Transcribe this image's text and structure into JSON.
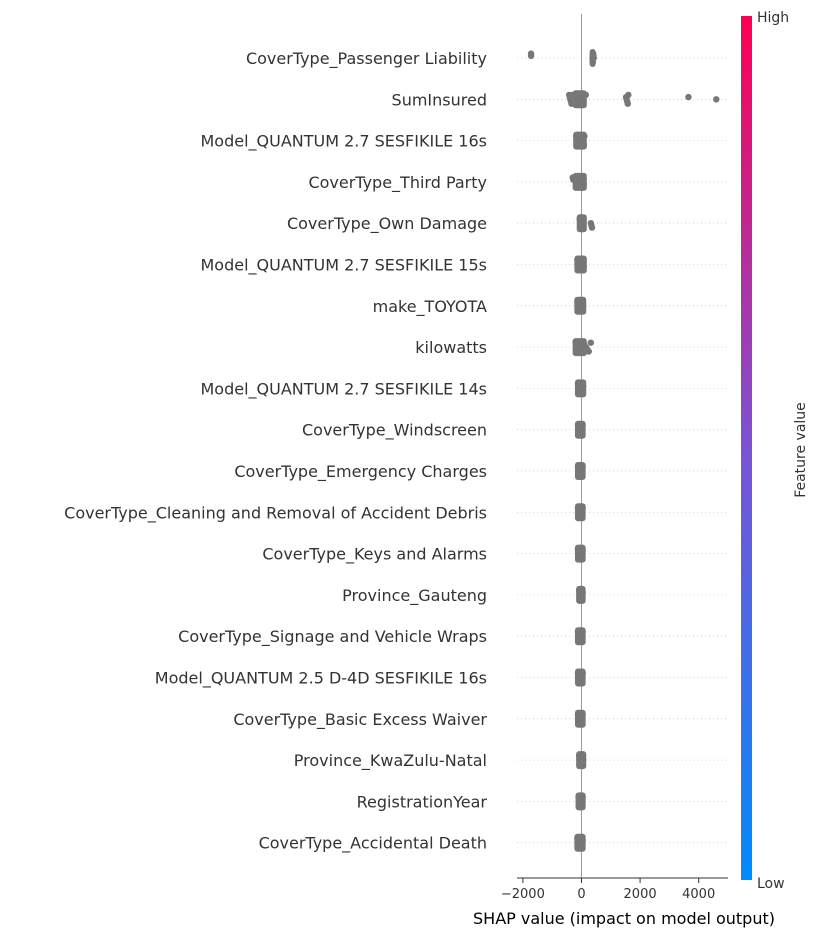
{
  "chart_data": {
    "type": "scatter",
    "subtype": "shap-beeswarm-summary",
    "xlabel": "SHAP value (impact on model output)",
    "xlim": [
      -2200,
      5000
    ],
    "x_ticks": [
      -2000,
      0,
      2000,
      4000
    ],
    "x_tick_labels": [
      "−2000",
      "0",
      "2000",
      "4000"
    ],
    "point_color": "#777777",
    "colorbar": {
      "title": "Feature value",
      "high_label": "High",
      "low_label": "Low",
      "high_color": "#ff0052",
      "mid_color": "#7c52d6",
      "low_color": "#008bfb"
    },
    "features": [
      {
        "name": "CoverType_Passenger Liability",
        "points": [
          -1720,
          -1720,
          380,
          380,
          390,
          400,
          410,
          420
        ]
      },
      {
        "name": "SumInsured",
        "points": [
          -420,
          -400,
          -380,
          -360,
          -340,
          -320,
          -300,
          -280,
          -250,
          -200,
          150,
          1520,
          1540,
          1560,
          1580,
          1600,
          3650,
          4600
        ]
      },
      {
        "name": "Model_QUANTUM 2.7 SESFIKILE 16s",
        "points": [
          -180,
          -150,
          -100,
          -60,
          -20,
          0,
          20,
          40,
          60,
          80,
          100
        ]
      },
      {
        "name": "CoverType_Third Party",
        "points": [
          -300,
          -280,
          -50,
          -20,
          0,
          20,
          40,
          60,
          80
        ]
      },
      {
        "name": "CoverType_Own Damage",
        "points": [
          -60,
          -40,
          -20,
          0,
          20,
          40,
          60,
          320,
          340,
          360
        ]
      },
      {
        "name": "Model_QUANTUM 2.7 SESFIKILE 15s",
        "points": [
          -140,
          -100,
          -60,
          -20,
          0,
          20,
          40,
          60,
          80
        ]
      },
      {
        "name": "make_TOYOTA",
        "points": [
          -140,
          -100,
          -60,
          -20,
          0,
          20,
          40,
          60
        ]
      },
      {
        "name": "kilowatts",
        "points": [
          -200,
          -150,
          -100,
          -50,
          0,
          50,
          100,
          150,
          200,
          250,
          320
        ]
      },
      {
        "name": "Model_QUANTUM 2.7 SESFIKILE 14s",
        "points": [
          -120,
          -80,
          -40,
          0,
          20,
          40,
          60
        ]
      },
      {
        "name": "CoverType_Windscreen",
        "points": [
          -120,
          -80,
          -40,
          0,
          20,
          40
        ]
      },
      {
        "name": "CoverType_Emergency Charges",
        "points": [
          -120,
          -80,
          -40,
          0,
          20,
          40
        ]
      },
      {
        "name": "CoverType_Cleaning and Removal of Accident Debris",
        "points": [
          -120,
          -80,
          -40,
          0,
          20,
          40
        ]
      },
      {
        "name": "CoverType_Keys and Alarms",
        "points": [
          -120,
          -80,
          -40,
          0,
          20,
          40
        ]
      },
      {
        "name": "Province_Gauteng",
        "points": [
          -80,
          -60,
          -40,
          -20,
          0,
          20,
          40
        ]
      },
      {
        "name": "CoverType_Signage and Vehicle Wraps",
        "points": [
          -120,
          -80,
          -40,
          0,
          20,
          40
        ]
      },
      {
        "name": "Model_QUANTUM 2.5 D-4D SESFIKILE 16s",
        "points": [
          -120,
          -80,
          -40,
          0,
          20,
          40
        ]
      },
      {
        "name": "CoverType_Basic Excess Waiver",
        "points": [
          -120,
          -80,
          -40,
          0,
          20,
          40
        ]
      },
      {
        "name": "Province_KwaZulu-Natal",
        "points": [
          -80,
          -60,
          -40,
          -20,
          0,
          20,
          40,
          60
        ]
      },
      {
        "name": "RegistrationYear",
        "points": [
          -100,
          -60,
          -20,
          0,
          20,
          40
        ]
      },
      {
        "name": "CoverType_Accidental Death",
        "points": [
          -140,
          -100,
          -60,
          -20,
          0,
          20,
          40
        ]
      }
    ]
  }
}
